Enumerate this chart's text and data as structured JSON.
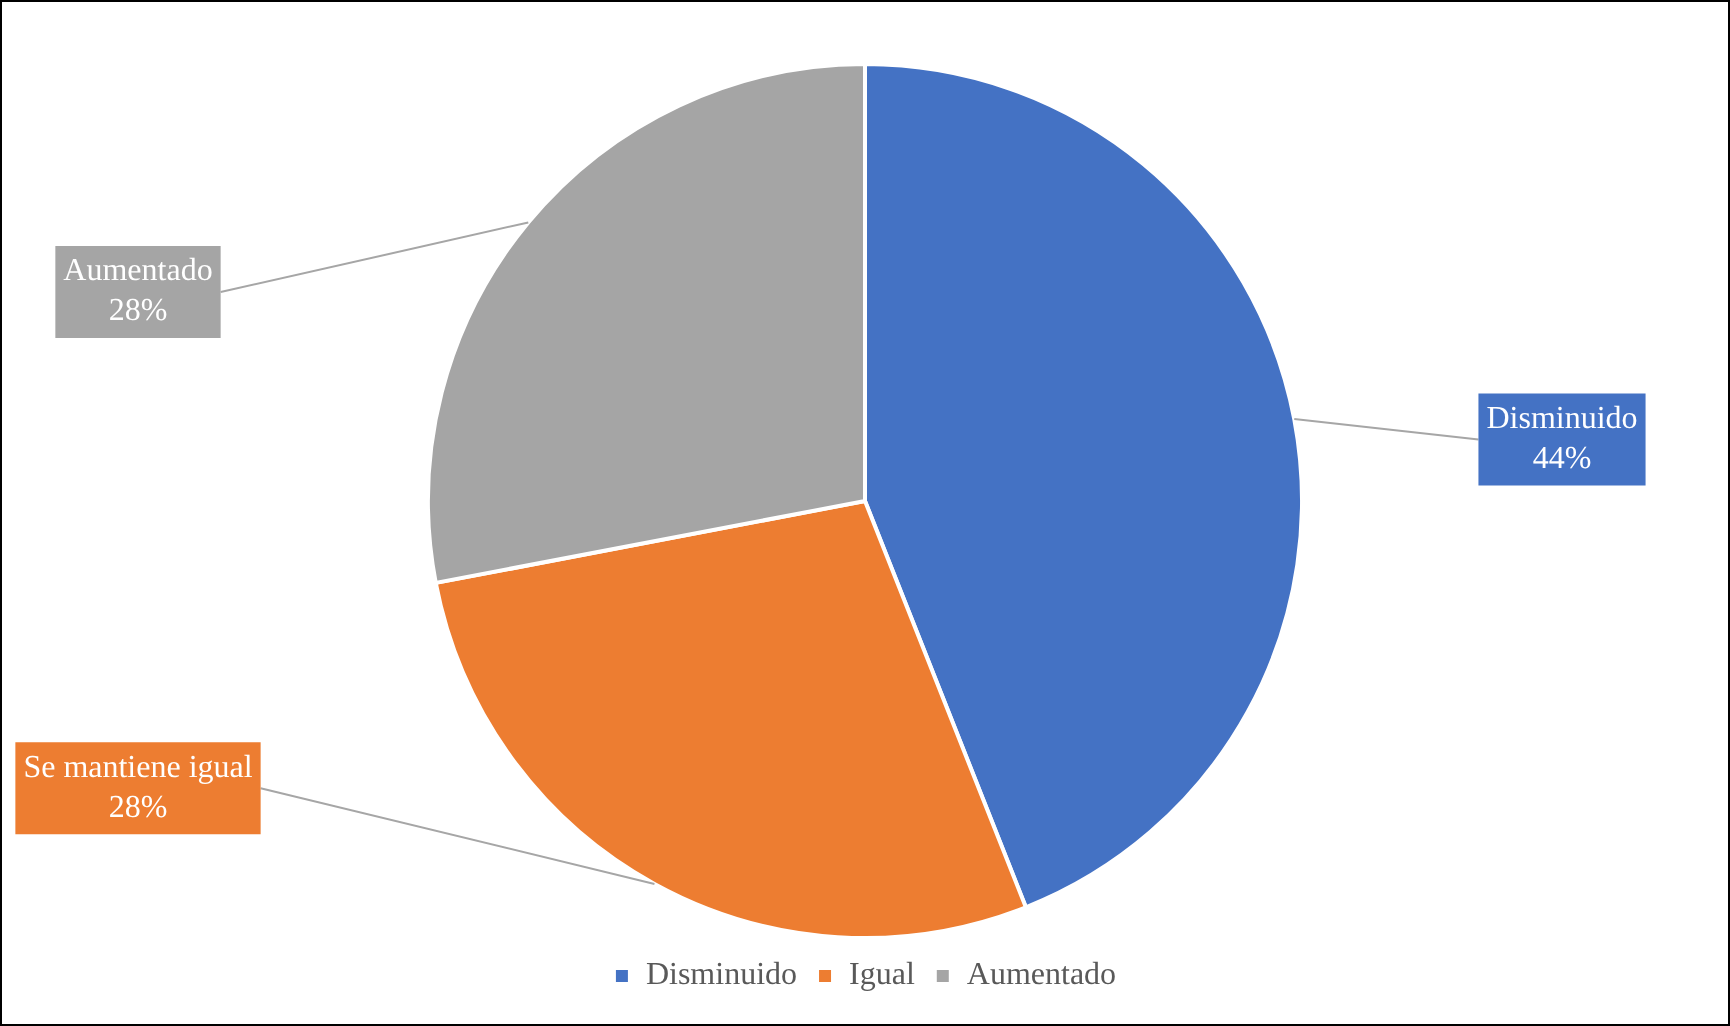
{
  "chart_data": {
    "type": "pie",
    "categories": [
      "Disminuido",
      "Igual",
      "Aumentado"
    ],
    "values": [
      44,
      28,
      28
    ],
    "colors": [
      "#4472c4",
      "#ed7d31",
      "#a5a5a5"
    ],
    "value_labels": [
      "Disminuido\n44%",
      "Se mantiene igual\n28%",
      "Aumentado\n28%"
    ],
    "legend": "bottom"
  }
}
